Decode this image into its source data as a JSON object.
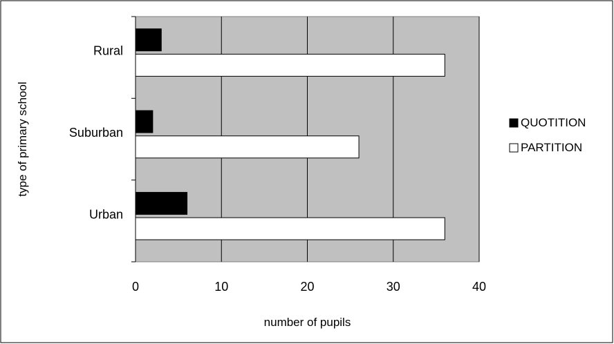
{
  "chart_data": {
    "type": "bar",
    "orientation": "horizontal",
    "categories": [
      "Rural",
      "Suburban",
      "Urban"
    ],
    "series": [
      {
        "name": "QUOTITION",
        "values": [
          3,
          2,
          6
        ]
      },
      {
        "name": "PARTITION",
        "values": [
          36,
          26,
          36
        ]
      }
    ],
    "xlabel": "number of pupils",
    "ylabel": "type of primary school",
    "xlim": [
      0,
      40
    ],
    "xticks": [
      "0",
      "10",
      "20",
      "30",
      "40"
    ],
    "grid": true,
    "legend_position": "right"
  },
  "colors": {
    "plot_background": "#c0c0c0",
    "quotition_fill": "#000000",
    "partition_fill": "#ffffff",
    "gridline": "#000000"
  }
}
